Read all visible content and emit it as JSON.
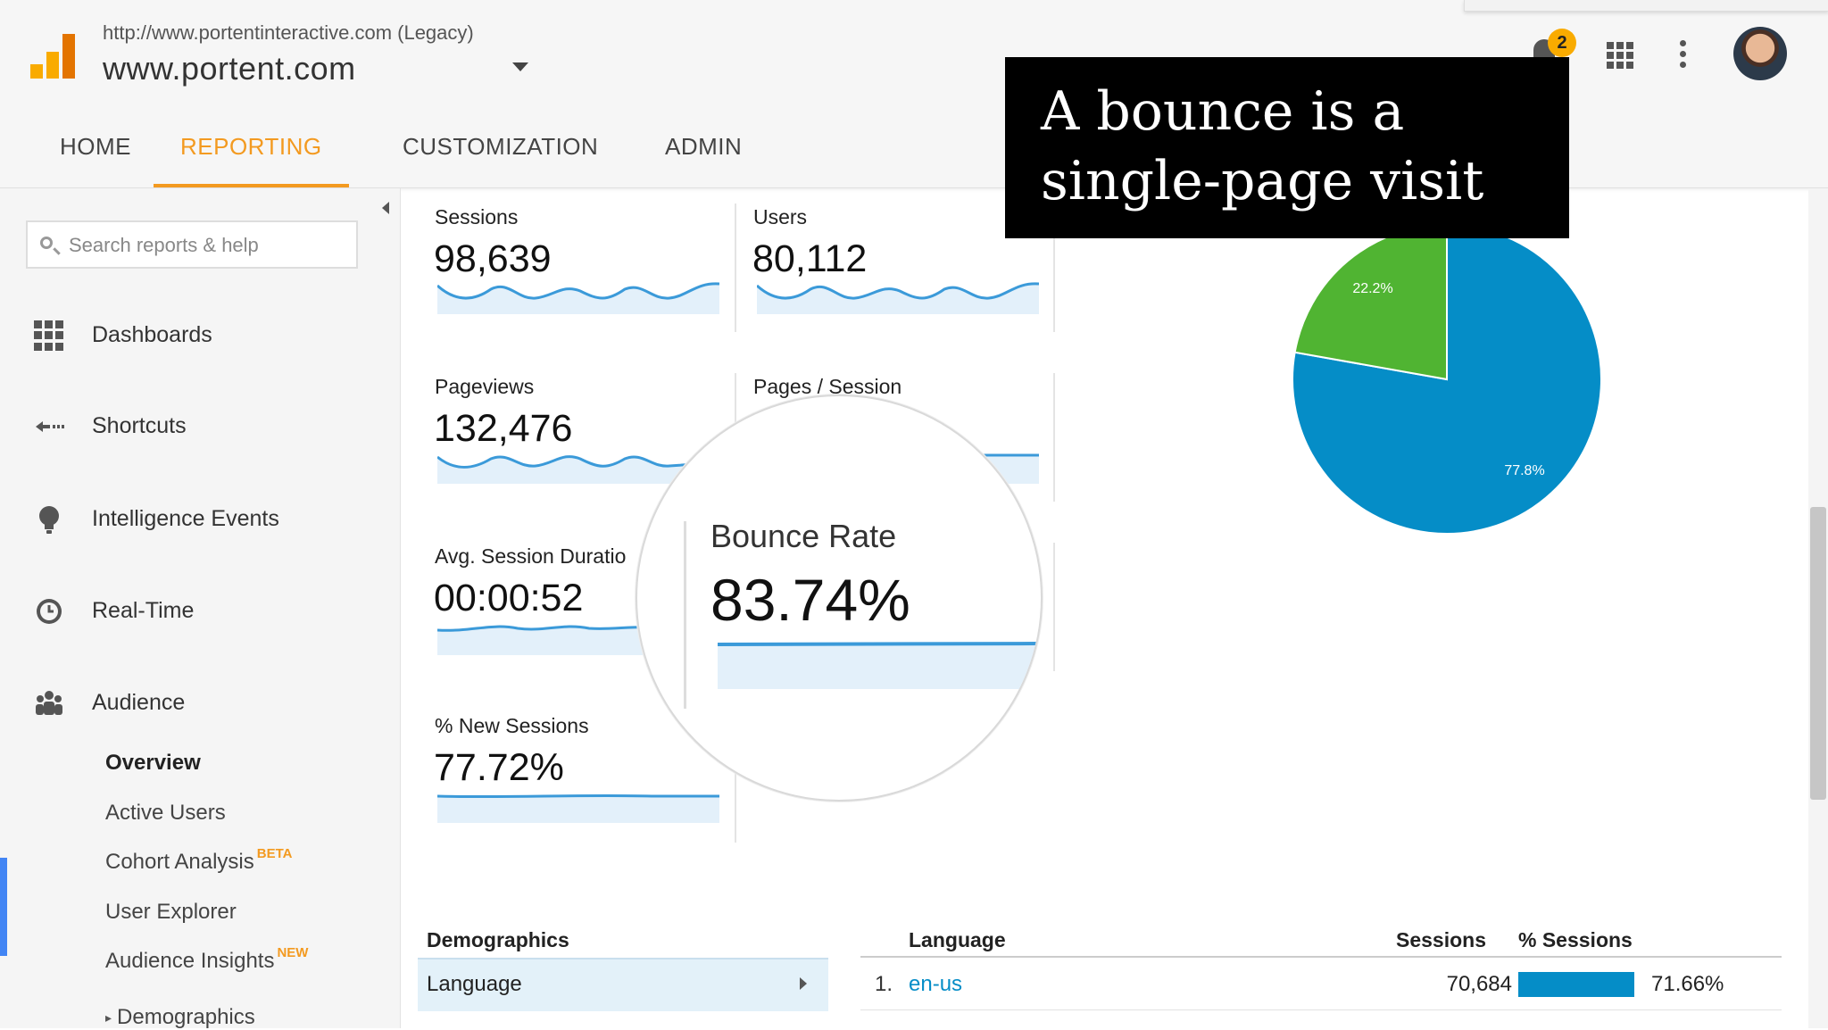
{
  "header": {
    "account_url": "http://www.portentinteractive.com (Legacy)",
    "account_name": "www.portent.com",
    "notification_count": "2"
  },
  "nav_tabs": [
    {
      "label": "HOME",
      "active": false
    },
    {
      "label": "REPORTING",
      "active": true
    },
    {
      "label": "CUSTOMIZATION",
      "active": false
    },
    {
      "label": "ADMIN",
      "active": false
    }
  ],
  "sidebar": {
    "search_placeholder": "Search reports & help",
    "items": [
      {
        "label": "Dashboards",
        "icon": "dashboard-icon"
      },
      {
        "label": "Shortcuts",
        "icon": "shortcuts-icon"
      },
      {
        "label": "Intelligence Events",
        "icon": "lightbulb-icon"
      },
      {
        "label": "Real-Time",
        "icon": "clock-icon"
      },
      {
        "label": "Audience",
        "icon": "people-icon",
        "active": true
      }
    ],
    "audience_sub": [
      {
        "label": "Overview",
        "selected": true
      },
      {
        "label": "Active Users"
      },
      {
        "label": "Cohort Analysis",
        "sup": "BETA"
      },
      {
        "label": "User Explorer"
      },
      {
        "label": "Audience Insights",
        "sup": "NEW"
      },
      {
        "label": "Demographics"
      }
    ]
  },
  "metrics": {
    "sessions": {
      "label": "Sessions",
      "value": "98,639"
    },
    "users": {
      "label": "Users",
      "value": "80,112"
    },
    "pageviews": {
      "label": "Pageviews",
      "value": "132,476"
    },
    "pages_per_session": {
      "label": "Pages / Session"
    },
    "avg_session_duration": {
      "label": "Avg. Session Duratio",
      "value": "00:00:52"
    },
    "new_sessions": {
      "label": "% New Sessions",
      "value": "77.72%"
    },
    "bounce_rate": {
      "label": "Bounce Rate",
      "value": "83.74%"
    }
  },
  "caption": {
    "line1": "A bounce is a",
    "line2": "single-page visit"
  },
  "pie": {
    "slices": [
      {
        "label": "77.8%",
        "value": 77.8,
        "color": "#058dc7"
      },
      {
        "label": "22.2%",
        "value": 22.2,
        "color": "#50b432"
      }
    ]
  },
  "demographics": {
    "heading": "Demographics",
    "selected": "Language"
  },
  "language_table": {
    "headers": {
      "language": "Language",
      "sessions": "Sessions",
      "pct_sessions": "% Sessions"
    },
    "rows": [
      {
        "rank": "1.",
        "language": "en-us",
        "sessions": "70,684",
        "pct": "71.66%",
        "pct_value": 71.66
      }
    ]
  },
  "colors": {
    "accent": "#f39a20",
    "active_bar": "#4285f4",
    "link": "#058dc7"
  }
}
